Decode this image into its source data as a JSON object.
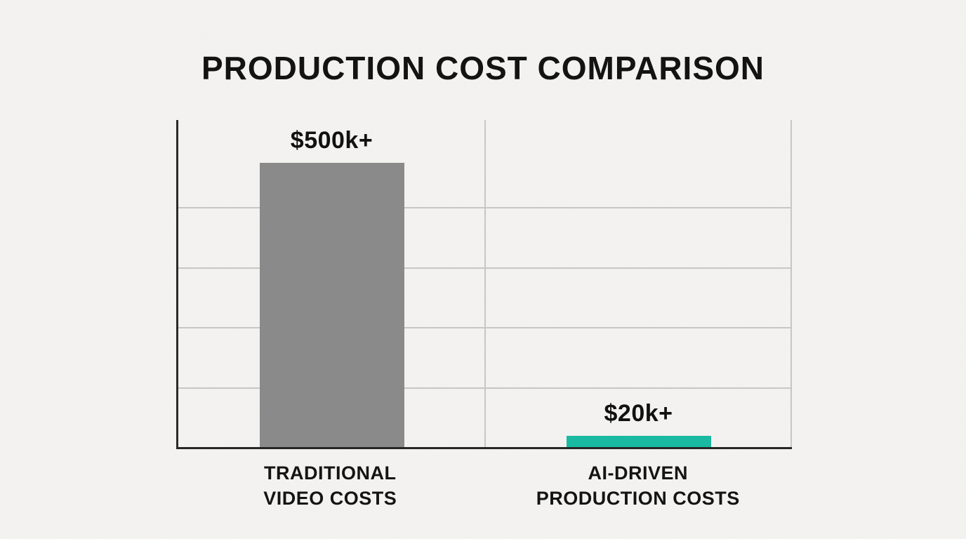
{
  "chart_data": {
    "type": "bar",
    "title": "PRODUCTION COST COMPARISON",
    "categories": [
      "TRADITIONAL VIDEO COSTS",
      "AI-DRIVEN PRODUCTION COSTS"
    ],
    "category_lines": [
      [
        "TRADITIONAL",
        "VIDEO COSTS"
      ],
      [
        "AI-DRIVEN",
        "PRODUCTION COSTS"
      ]
    ],
    "values": [
      500000,
      20000
    ],
    "value_labels": [
      "$500k+",
      "$20k+"
    ],
    "bar_colors": [
      "#8a8a8a",
      "#1ab9a1"
    ],
    "xlabel": "",
    "ylabel": "",
    "ylim": [
      0,
      575000
    ],
    "grid": "4 unlabeled horizontal gridlines, center vertical gridline, light right border",
    "legend_position": "none"
  },
  "colors": {
    "background": "#f4f3f1",
    "axis": "#2b2b2b",
    "gridline": "#c7c6c4",
    "title_text": "#131313",
    "label_text": "#141414",
    "bar_traditional": "#8a8a8a",
    "bar_ai_driven": "#1ab9a1"
  }
}
